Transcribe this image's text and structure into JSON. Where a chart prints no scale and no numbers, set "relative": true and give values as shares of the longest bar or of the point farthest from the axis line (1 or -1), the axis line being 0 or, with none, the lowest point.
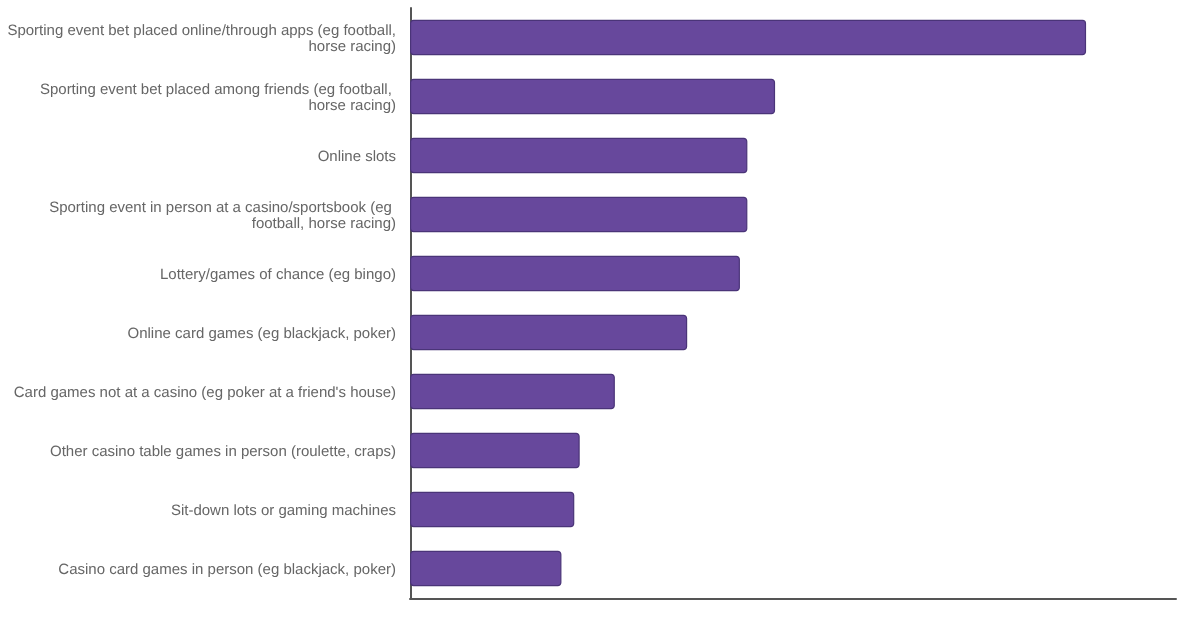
{
  "chart_data": {
    "type": "bar",
    "orientation": "horizontal",
    "relative": true,
    "categories": [
      "Sporting event bet placed online/through apps (eg football, horse racing)",
      "Sporting event bet placed among friends (eg football, horse racing)",
      "Online slots",
      "Sporting event in person at a casino/sportsbook (eg football, horse racing)",
      "Lottery/games of chance (eg bingo)",
      "Online card games (eg blackjack, poker)",
      "Card games not at a casino (eg poker at a friend's house)",
      "Other casino table games in person (roulette, craps)",
      "Sit-down lots or gaming machines",
      "Casino card games in person (eg blackjack, poker)"
    ],
    "values": [
      1,
      0.54,
      0.499,
      0.499,
      0.488,
      0.41,
      0.303,
      0.251,
      0.243,
      0.224
    ],
    "color": "#67489c",
    "grid": false
  }
}
